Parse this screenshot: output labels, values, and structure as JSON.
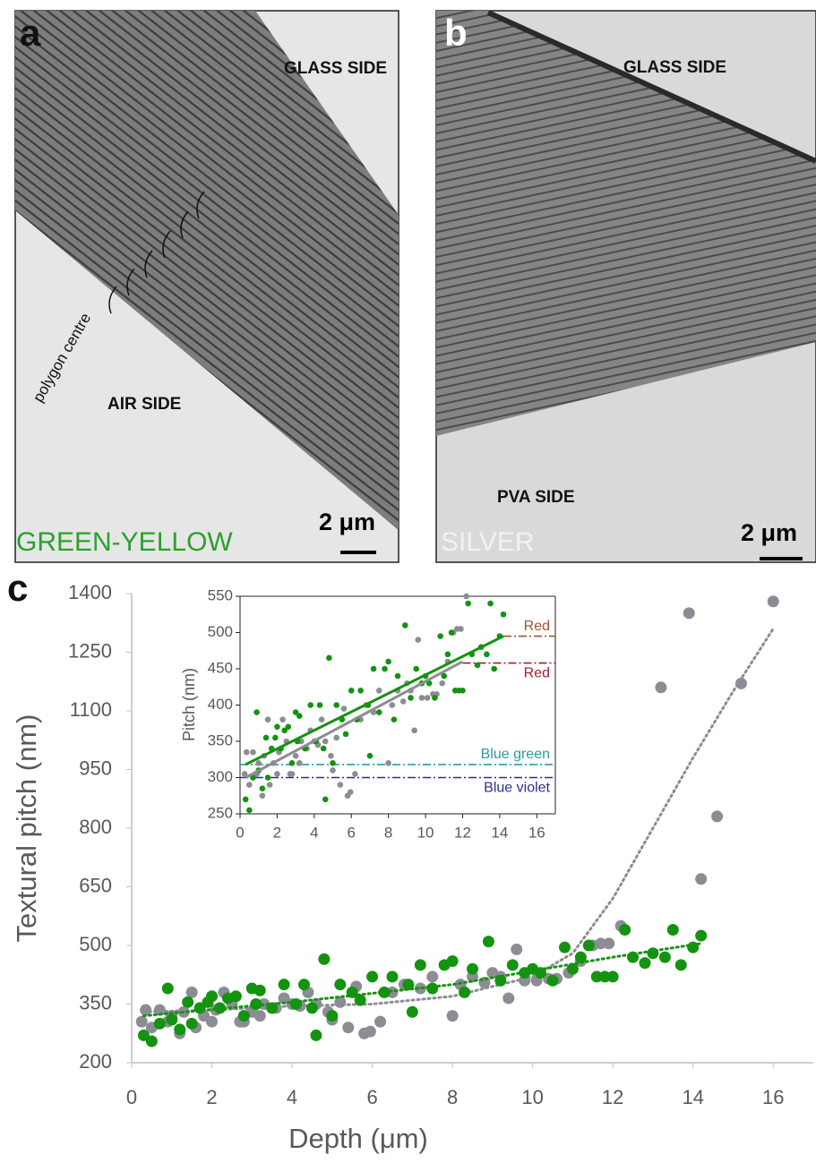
{
  "panels": [
    {
      "letter": "a",
      "glass": "GLASS SIDE",
      "other": "AIR SIDE",
      "note": "polygon centre",
      "scale": "2 μm",
      "sample": "GREEN-YELLOW"
    },
    {
      "letter": "b",
      "glass": "GLASS SIDE",
      "other": "PVA SIDE",
      "scale": "2 μm",
      "sample": "SILVER"
    }
  ],
  "chart_data": {
    "type": "scatter",
    "panel": "c",
    "xlabel": "Depth (μm)",
    "ylabel": "Textural pitch (nm)",
    "xlim": [
      0,
      17
    ],
    "ylim": [
      200,
      1400
    ],
    "xticks": [
      0,
      2,
      4,
      6,
      8,
      10,
      12,
      14,
      16
    ],
    "yticks": [
      200,
      350,
      500,
      650,
      800,
      950,
      1100,
      1250,
      1400
    ],
    "series": [
      {
        "color": "#8c8c94",
        "x": [
          0.25,
          0.35,
          0.5,
          0.7,
          0.9,
          1.0,
          1.2,
          1.3,
          1.5,
          1.6,
          1.8,
          2.0,
          2.1,
          2.3,
          2.5,
          2.7,
          2.8,
          3.0,
          3.2,
          3.3,
          3.6,
          3.8,
          4.0,
          4.2,
          4.4,
          4.6,
          4.9,
          5.0,
          5.2,
          5.4,
          5.6,
          5.8,
          5.95,
          6.2,
          6.5,
          6.8,
          7.2,
          7.5,
          8.0,
          8.2,
          8.5,
          8.8,
          9.0,
          9.2,
          9.4,
          9.6,
          9.8,
          10.1,
          10.4,
          10.6,
          10.9,
          11.2,
          11.5,
          11.7,
          11.9,
          12.2,
          13.2,
          13.9,
          14.2,
          14.6,
          15.2,
          16.0
        ],
        "values": [
          305,
          335,
          290,
          335,
          305,
          320,
          275,
          330,
          380,
          290,
          320,
          305,
          335,
          380,
          350,
          305,
          305,
          330,
          320,
          350,
          340,
          365,
          350,
          345,
          380,
          350,
          330,
          310,
          355,
          290,
          395,
          275,
          280,
          305,
          380,
          400,
          390,
          420,
          320,
          400,
          420,
          405,
          430,
          420,
          365,
          490,
          410,
          410,
          415,
          415,
          430,
          460,
          500,
          505,
          505,
          550,
          1160,
          1350,
          670,
          830,
          1170,
          1380
        ],
        "trend": {
          "x": [
            0.3,
            2,
            4,
            6,
            8,
            10,
            11,
            12,
            13,
            14,
            15,
            16
          ],
          "values": [
            330,
            335,
            345,
            350,
            370,
            420,
            480,
            620,
            800,
            980,
            1150,
            1310
          ]
        },
        "inset_trend": {
          "x": [
            0.3,
            12
          ],
          "values": [
            300,
            460
          ]
        }
      },
      {
        "color": "#13930f",
        "x": [
          0.3,
          0.5,
          0.7,
          0.9,
          1.0,
          1.2,
          1.4,
          1.5,
          1.7,
          1.9,
          2.0,
          2.2,
          2.4,
          2.6,
          2.8,
          3.0,
          3.1,
          3.2,
          3.5,
          3.8,
          4.1,
          4.3,
          4.5,
          4.6,
          4.8,
          5.0,
          5.2,
          5.5,
          5.7,
          6.0,
          6.3,
          6.5,
          6.9,
          7.0,
          7.2,
          7.5,
          7.8,
          8.0,
          8.3,
          8.5,
          8.9,
          9.2,
          9.5,
          9.8,
          10.0,
          10.2,
          10.5,
          10.8,
          11.0,
          11.2,
          11.4,
          11.6,
          11.8,
          12.0,
          12.3,
          12.5,
          12.8,
          13.0,
          13.3,
          13.5,
          13.7,
          14.0,
          14.2
        ],
        "values": [
          270,
          255,
          300,
          390,
          310,
          285,
          355,
          300,
          340,
          355,
          370,
          340,
          365,
          370,
          320,
          390,
          350,
          385,
          340,
          400,
          350,
          400,
          340,
          270,
          465,
          320,
          400,
          380,
          360,
          420,
          380,
          420,
          400,
          330,
          450,
          390,
          450,
          460,
          380,
          440,
          510,
          410,
          450,
          430,
          440,
          430,
          410,
          495,
          440,
          470,
          500,
          420,
          420,
          420,
          540,
          470,
          455,
          480,
          470,
          540,
          450,
          495,
          525
        ],
        "trend": {
          "x": [
            0.3,
            4,
            8,
            10,
            12,
            14.2
          ],
          "values": [
            320,
            355,
            400,
            435,
            470,
            505
          ]
        },
        "inset_trend": {
          "x": [
            0.3,
            14.2
          ],
          "values": [
            318,
            495
          ]
        }
      }
    ],
    "inset": {
      "ylabel": "Pitch (nm)",
      "xlim": [
        0,
        17
      ],
      "ylim": [
        250,
        550
      ],
      "xticks": [
        0,
        2,
        4,
        6,
        8,
        10,
        12,
        14,
        16
      ],
      "yticks": [
        250,
        300,
        350,
        400,
        450,
        500,
        550
      ],
      "reference_lines": [
        {
          "label": "Red",
          "value": 495,
          "from": 14.2,
          "color": "#a0522d"
        },
        {
          "label": "Red",
          "value": 458,
          "from": 12,
          "color": "#a01e2a"
        },
        {
          "label": "Blue green",
          "value": 318,
          "from": 0,
          "color": "#2a9d9a"
        },
        {
          "label": "Blue violet",
          "value": 300,
          "from": 0,
          "color": "#2e2e8f"
        }
      ]
    }
  }
}
